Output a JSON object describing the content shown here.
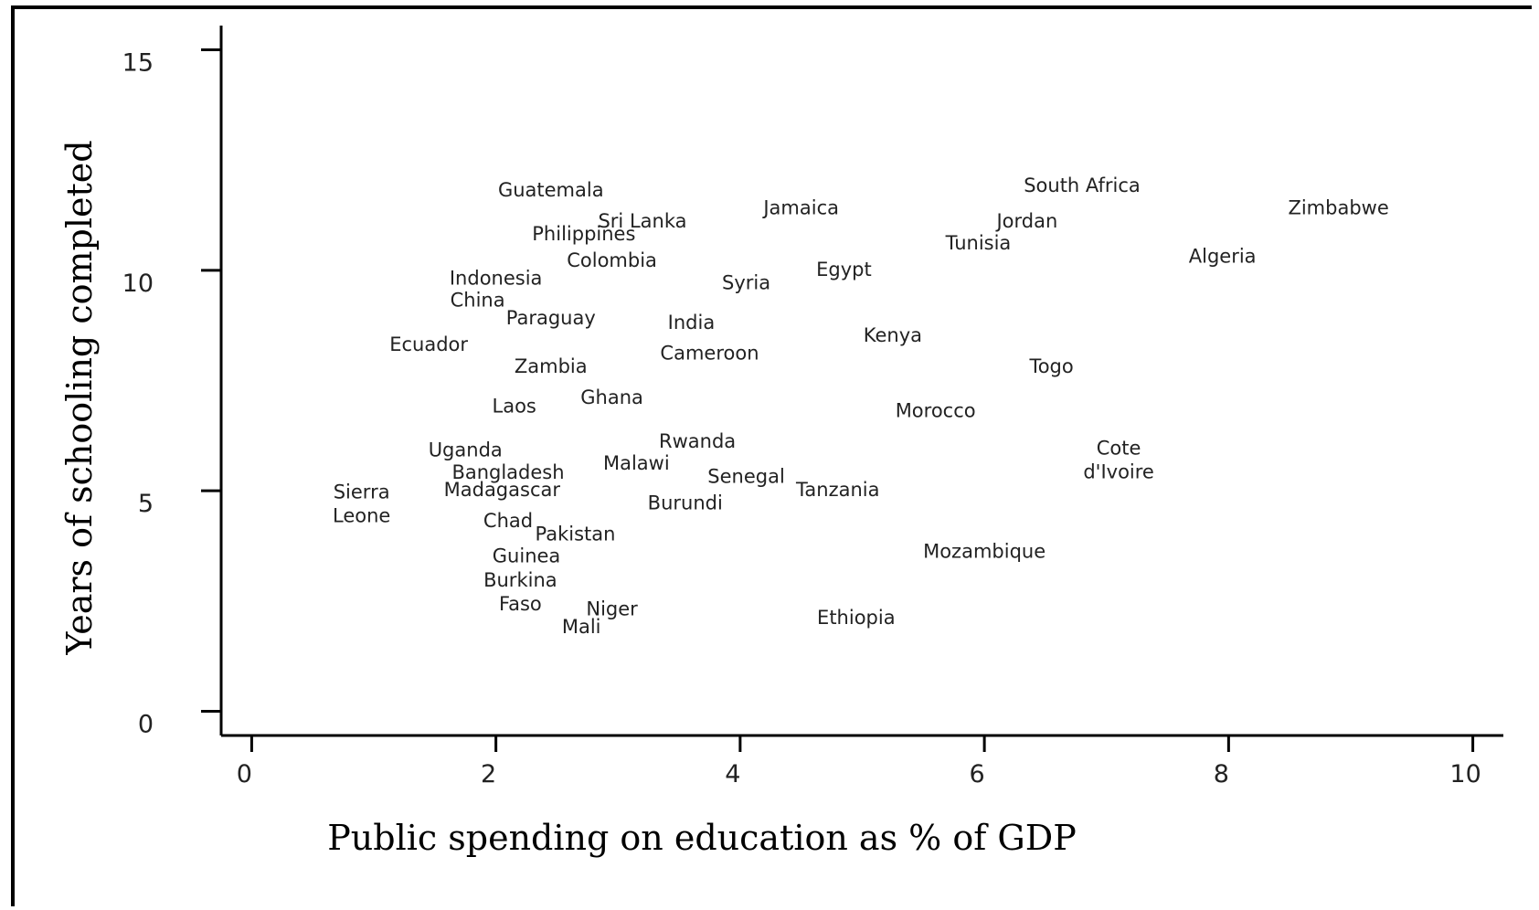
{
  "chart_data": {
    "type": "scatter",
    "title": "",
    "xlabel": "Public spending on education as % of GDP",
    "ylabel": "Years of schooling completed",
    "xlim": [
      -0.25,
      10.25
    ],
    "ylim": [
      -0.55,
      15.55
    ],
    "xticks": [
      0,
      2,
      4,
      6,
      8,
      10
    ],
    "yticks": [
      0,
      5,
      10,
      15
    ],
    "grid": false,
    "points": [
      {
        "label": "Guatemala",
        "x": 2.45,
        "y": 11.8
      },
      {
        "label": "Sri Lanka",
        "x": 3.2,
        "y": 11.1
      },
      {
        "label": "Philippines",
        "x": 2.72,
        "y": 10.8
      },
      {
        "label": "Colombia",
        "x": 2.95,
        "y": 10.2
      },
      {
        "label": "Indonesia",
        "x": 2.0,
        "y": 9.8
      },
      {
        "label": "China",
        "x": 1.85,
        "y": 9.3
      },
      {
        "label": "Paraguay",
        "x": 2.45,
        "y": 8.9
      },
      {
        "label": "Ecuador",
        "x": 1.45,
        "y": 8.3
      },
      {
        "label": "Zambia",
        "x": 2.45,
        "y": 7.8
      },
      {
        "label": "Laos",
        "x": 2.15,
        "y": 6.9
      },
      {
        "label": "Ghana",
        "x": 2.95,
        "y": 7.1
      },
      {
        "label": "India",
        "x": 3.6,
        "y": 8.8
      },
      {
        "label": "Cameroon",
        "x": 3.75,
        "y": 8.1
      },
      {
        "label": "Jamaica",
        "x": 4.5,
        "y": 11.4
      },
      {
        "label": "Syria",
        "x": 4.05,
        "y": 9.7
      },
      {
        "label": "Egypt",
        "x": 4.85,
        "y": 10.0
      },
      {
        "label": "Kenya",
        "x": 5.25,
        "y": 8.5
      },
      {
        "label": "Morocco",
        "x": 5.6,
        "y": 6.8
      },
      {
        "label": "South Africa",
        "x": 6.8,
        "y": 11.9
      },
      {
        "label": "Jordan",
        "x": 6.35,
        "y": 11.1
      },
      {
        "label": "Tunisia",
        "x": 5.95,
        "y": 10.6
      },
      {
        "label": "Togo",
        "x": 6.55,
        "y": 7.8
      },
      {
        "label": "Algeria",
        "x": 7.95,
        "y": 10.3
      },
      {
        "label": "Zimbabwe",
        "x": 8.9,
        "y": 11.4
      },
      {
        "label": "Cote d'Ivoire",
        "x": 7.1,
        "y": 5.7
      },
      {
        "label": "Uganda",
        "x": 1.75,
        "y": 5.9
      },
      {
        "label": "Bangladesh",
        "x": 2.1,
        "y": 5.4
      },
      {
        "label": "Madagascar",
        "x": 2.05,
        "y": 5.0
      },
      {
        "label": "Sierra Leone",
        "x": 0.9,
        "y": 4.7
      },
      {
        "label": "Rwanda",
        "x": 3.65,
        "y": 6.1
      },
      {
        "label": "Malawi",
        "x": 3.15,
        "y": 5.6
      },
      {
        "label": "Senegal",
        "x": 4.05,
        "y": 5.3
      },
      {
        "label": "Tanzania",
        "x": 4.8,
        "y": 5.0
      },
      {
        "label": "Burundi",
        "x": 3.55,
        "y": 4.7
      },
      {
        "label": "Chad",
        "x": 2.1,
        "y": 4.3
      },
      {
        "label": "Pakistan",
        "x": 2.65,
        "y": 4.0
      },
      {
        "label": "Guinea",
        "x": 2.25,
        "y": 3.5
      },
      {
        "label": "Burkina Faso",
        "x": 2.2,
        "y": 2.7
      },
      {
        "label": "Niger",
        "x": 2.95,
        "y": 2.3
      },
      {
        "label": "Mali",
        "x": 2.7,
        "y": 1.9
      },
      {
        "label": "Mozambique",
        "x": 6.0,
        "y": 3.6
      },
      {
        "label": "Ethiopia",
        "x": 4.95,
        "y": 2.1
      }
    ]
  }
}
